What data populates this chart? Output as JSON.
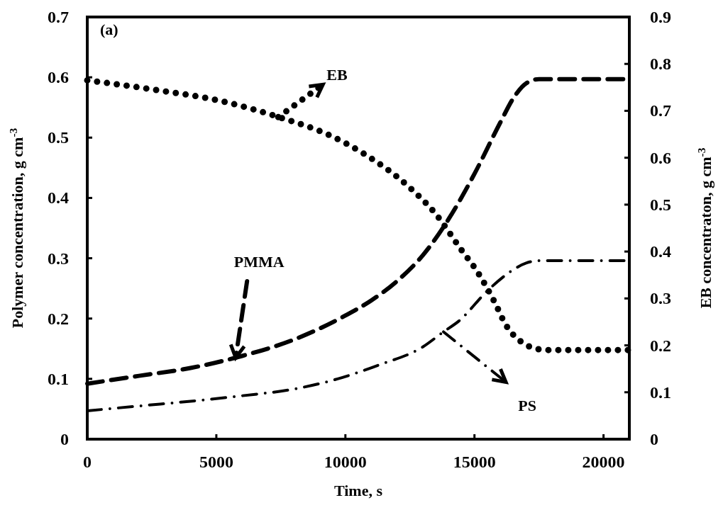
{
  "chart_data": {
    "type": "line",
    "title": "(a)",
    "xlabel": "Time, s",
    "ylabel": "Polymer concentration, g cm$^{-3}$",
    "y2label": "EB concentraton, g cm$^{-3}$",
    "xlim": [
      0,
      21000
    ],
    "xticks": [
      0,
      5000,
      10000,
      15000,
      20000
    ],
    "ylim": [
      0,
      0.7
    ],
    "yticks": [
      0,
      0.1,
      0.2,
      0.3,
      0.4,
      0.5,
      0.6,
      0.7
    ],
    "y2lim": [
      0,
      0.9
    ],
    "y2ticks": [
      0,
      0.1,
      0.2,
      0.3,
      0.4,
      0.5,
      0.6,
      0.7,
      0.8,
      0.9
    ],
    "grid": false,
    "annotations": [
      {
        "text": "EB",
        "x": 7400,
        "y": 0.534
      },
      {
        "text": "PMMA",
        "x": 5750,
        "y": 0.135
      },
      {
        "text": "PS",
        "x": 13800,
        "y": 0.178
      }
    ],
    "series": [
      {
        "color": "#000000",
        "axis": "y2",
        "line_style": "dotted",
        "x": [
          0,
          2600,
          5250,
          7400,
          9500,
          10700,
          12500,
          13500,
          14500,
          15100,
          15800,
          16200,
          16800,
          17200,
          17800,
          21000
        ],
        "values": [
          0.765,
          0.745,
          0.72,
          0.687,
          0.645,
          0.609,
          0.536,
          0.48,
          0.403,
          0.358,
          0.29,
          0.245,
          0.208,
          0.196,
          0.19,
          0.19
        ]
      },
      {
        "color": "#000000",
        "line_style": "dashed",
        "x": [
          0,
          2000,
          4000,
          6000,
          8000,
          10000,
          11000,
          12000,
          13000,
          14000,
          15000,
          16000,
          16500,
          17000,
          17500,
          21000
        ],
        "values": [
          0.092,
          0.105,
          0.118,
          0.138,
          0.165,
          0.205,
          0.23,
          0.262,
          0.305,
          0.365,
          0.44,
          0.525,
          0.565,
          0.59,
          0.597,
          0.597
        ]
      },
      {
        "color": "#000000",
        "line_style": "dashdot",
        "x": [
          0,
          2000,
          4500,
          6000,
          8000,
          9700,
          11300,
          13000,
          13800,
          14400,
          15500,
          16300,
          17000,
          17500,
          21000
        ],
        "values": [
          0.047,
          0.055,
          0.065,
          0.072,
          0.083,
          0.1,
          0.123,
          0.153,
          0.178,
          0.196,
          0.246,
          0.275,
          0.292,
          0.296,
          0.296
        ]
      }
    ]
  }
}
